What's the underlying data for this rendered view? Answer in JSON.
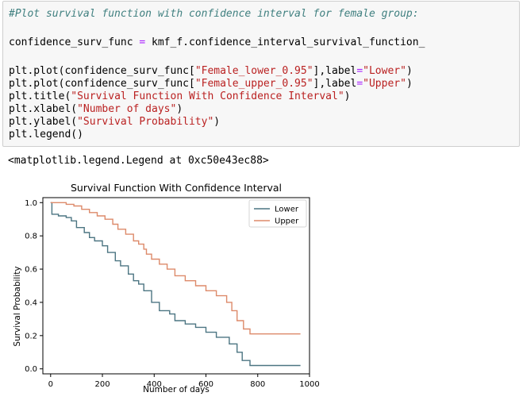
{
  "code": {
    "comment": "#Plot survival function with confidence interval for female group:",
    "line_assign": {
      "var": "confidence_surv_func",
      "op": "=",
      "rhs": "kmf_f.confidence_interval_survival_function_"
    },
    "line_plot_lower": {
      "pre": "plt.plot(confidence_surv_func[",
      "key": "\"Female_lower_0.95\"",
      "mid": "],label",
      "op": "=",
      "val": "\"Lower\"",
      "post": ")"
    },
    "line_plot_upper": {
      "pre": "plt.plot(confidence_surv_func[",
      "key": "\"Female_upper_0.95\"",
      "mid": "],label",
      "op": "=",
      "val": "\"Upper\"",
      "post": ")"
    },
    "line_title": {
      "pre": "plt.title(",
      "arg": "\"Survival Function With Confidence Interval\"",
      "post": ")"
    },
    "line_xlabel": {
      "pre": "plt.xlabel(",
      "arg": "\"Number of days\"",
      "post": ")"
    },
    "line_ylabel": {
      "pre": "plt.ylabel(",
      "arg": "\"Survival Probability\"",
      "post": ")"
    },
    "line_legend": "plt.legend()"
  },
  "output": {
    "repr": "<matplotlib.legend.Legend at 0xc50e43ec88>"
  },
  "chart_data": {
    "type": "line",
    "title": "Survival Function With Confidence Interval",
    "xlabel": "Number of days",
    "ylabel": "Survival Probability",
    "xlim": [
      -30,
      1000
    ],
    "ylim": [
      -0.03,
      1.03
    ],
    "xticks": [
      0,
      200,
      400,
      600,
      800,
      1000
    ],
    "yticks": [
      0.0,
      0.2,
      0.4,
      0.6,
      0.8,
      1.0
    ],
    "grid": false,
    "legend_position": "top-right",
    "series": [
      {
        "name": "Lower",
        "color": "#4c7582",
        "points": [
          [
            0,
            1.0
          ],
          [
            5,
            0.93
          ],
          [
            30,
            0.92
          ],
          [
            60,
            0.91
          ],
          [
            80,
            0.89
          ],
          [
            100,
            0.85
          ],
          [
            130,
            0.82
          ],
          [
            150,
            0.79
          ],
          [
            170,
            0.77
          ],
          [
            200,
            0.74
          ],
          [
            220,
            0.7
          ],
          [
            250,
            0.65
          ],
          [
            270,
            0.62
          ],
          [
            300,
            0.57
          ],
          [
            320,
            0.53
          ],
          [
            340,
            0.51
          ],
          [
            360,
            0.47
          ],
          [
            390,
            0.4
          ],
          [
            420,
            0.35
          ],
          [
            460,
            0.33
          ],
          [
            480,
            0.29
          ],
          [
            520,
            0.27
          ],
          [
            560,
            0.25
          ],
          [
            600,
            0.22
          ],
          [
            640,
            0.19
          ],
          [
            690,
            0.15
          ],
          [
            720,
            0.1
          ],
          [
            740,
            0.05
          ],
          [
            770,
            0.02
          ],
          [
            800,
            0.02
          ],
          [
            965,
            0.02
          ]
        ]
      },
      {
        "name": "Upper",
        "color": "#dd8a6a",
        "points": [
          [
            0,
            1.0
          ],
          [
            30,
            1.0
          ],
          [
            60,
            0.99
          ],
          [
            90,
            0.98
          ],
          [
            120,
            0.96
          ],
          [
            150,
            0.94
          ],
          [
            180,
            0.92
          ],
          [
            210,
            0.9
          ],
          [
            240,
            0.87
          ],
          [
            260,
            0.84
          ],
          [
            290,
            0.81
          ],
          [
            320,
            0.77
          ],
          [
            340,
            0.75
          ],
          [
            360,
            0.72
          ],
          [
            370,
            0.69
          ],
          [
            390,
            0.66
          ],
          [
            420,
            0.63
          ],
          [
            450,
            0.6
          ],
          [
            480,
            0.56
          ],
          [
            520,
            0.53
          ],
          [
            560,
            0.5
          ],
          [
            600,
            0.47
          ],
          [
            640,
            0.44
          ],
          [
            680,
            0.4
          ],
          [
            700,
            0.35
          ],
          [
            720,
            0.29
          ],
          [
            745,
            0.24
          ],
          [
            770,
            0.21
          ],
          [
            800,
            0.21
          ],
          [
            965,
            0.21
          ]
        ]
      }
    ]
  }
}
